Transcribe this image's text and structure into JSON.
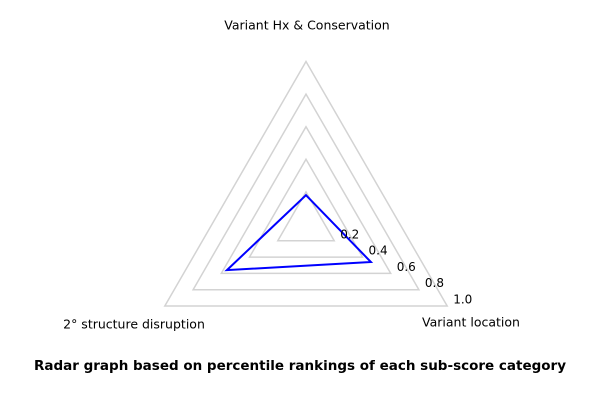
{
  "chart_data": {
    "type": "radar",
    "title": "Radar graph based on percentile rankings of each sub-score category",
    "categories": [
      "Variant Hx & Conservation",
      "Variant location",
      "2° structure disruption"
    ],
    "angles_deg": [
      90,
      330,
      210
    ],
    "values": [
      0.18,
      0.46,
      0.56
    ],
    "r_ticks": [
      0.2,
      0.4,
      0.6,
      0.8,
      1.0
    ],
    "r_tick_labels": [
      "0.2",
      "0.4",
      "0.6",
      "0.8",
      "1.0"
    ],
    "rlim": [
      0,
      1.0
    ],
    "grid": true,
    "legend": false,
    "tick_axis_angle_deg": 330,
    "colors": {
      "line": "#0000ff",
      "grid": "#d3d3d3",
      "text": "#000000",
      "background": "#ffffff"
    }
  }
}
